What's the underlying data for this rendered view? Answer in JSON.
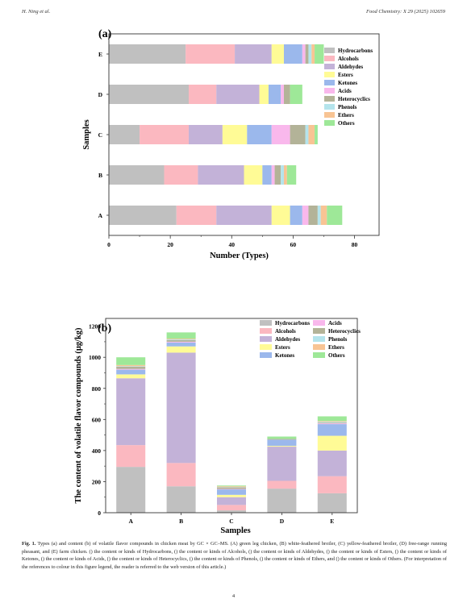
{
  "header": {
    "left": "H. Ning et al.",
    "right": "Food Chemistry: X 29 (2025) 102659"
  },
  "colors": {
    "Hydrocarbons": "#c0c0c0",
    "Alcohols": "#fbb8c0",
    "Aldehydes": "#c3b2d8",
    "Esters": "#fffb96",
    "Ketones": "#9bb8ec",
    "Acids": "#f9b8ec",
    "Heterocyclics": "#b3b398",
    "Phenols": "#b4e4ec",
    "Ethers": "#f8c494",
    "Others": "#9ee898"
  },
  "chart_data": [
    {
      "panel": "(a)",
      "type": "bar",
      "orientation": "horizontal",
      "stacked": true,
      "xlabel": "Number (Types)",
      "ylabel": "Samples",
      "xlim": [
        0,
        88
      ],
      "xticks": [
        0,
        20,
        40,
        60,
        80
      ],
      "categories": [
        "A",
        "B",
        "C",
        "D",
        "E"
      ],
      "legend_position": "right",
      "series": [
        {
          "name": "Hydrocarbons",
          "values": [
            22,
            18,
            10,
            26,
            25
          ]
        },
        {
          "name": "Alcohols",
          "values": [
            13,
            11,
            16,
            9,
            16
          ]
        },
        {
          "name": "Aldehydes",
          "values": [
            18,
            15,
            11,
            14,
            12
          ]
        },
        {
          "name": "Esters",
          "values": [
            6,
            6,
            8,
            3,
            4
          ]
        },
        {
          "name": "Ketones",
          "values": [
            4,
            3,
            8,
            4,
            6
          ]
        },
        {
          "name": "Acids",
          "values": [
            2,
            1,
            6,
            1,
            1
          ]
        },
        {
          "name": "Heterocyclics",
          "values": [
            3,
            2,
            5,
            2,
            1
          ]
        },
        {
          "name": "Phenols",
          "values": [
            1,
            1,
            1,
            0,
            1
          ]
        },
        {
          "name": "Ethers",
          "values": [
            2,
            1,
            2,
            0,
            1
          ]
        },
        {
          "name": "Others",
          "values": [
            5,
            3,
            1,
            4,
            3
          ]
        }
      ]
    },
    {
      "panel": "(b)",
      "type": "bar",
      "orientation": "vertical",
      "stacked": true,
      "xlabel": "Samples",
      "ylabel": "The content of volatile flavor compounds (μg/kg)",
      "ylim": [
        0,
        1250
      ],
      "yticks": [
        0,
        200,
        400,
        600,
        800,
        1000,
        1200
      ],
      "categories": [
        "A",
        "B",
        "C",
        "D",
        "E"
      ],
      "legend_position": "top-right",
      "series": [
        {
          "name": "Hydrocarbons",
          "values": [
            295,
            170,
            15,
            155,
            125
          ]
        },
        {
          "name": "Alcohols",
          "values": [
            140,
            150,
            35,
            50,
            110
          ]
        },
        {
          "name": "Aldehydes",
          "values": [
            430,
            710,
            50,
            220,
            165
          ]
        },
        {
          "name": "Esters",
          "values": [
            25,
            40,
            15,
            5,
            95
          ]
        },
        {
          "name": "Ketones",
          "values": [
            30,
            25,
            35,
            40,
            75
          ]
        },
        {
          "name": "Acids",
          "values": [
            5,
            5,
            3,
            0,
            5
          ]
        },
        {
          "name": "Heterocyclics",
          "values": [
            15,
            10,
            10,
            5,
            5
          ]
        },
        {
          "name": "Phenols",
          "values": [
            3,
            5,
            2,
            0,
            5
          ]
        },
        {
          "name": "Ethers",
          "values": [
            7,
            5,
            5,
            0,
            5
          ]
        },
        {
          "name": "Others",
          "values": [
            50,
            40,
            5,
            15,
            30
          ]
        }
      ]
    }
  ],
  "caption": {
    "label": "Fig. 1.",
    "text": "Types (a) and content (b) of volatile flavor compounds in chicken meat by GC × GC–MS. (A) green leg chicken, (B) white-feathered broiler, (C) yellow-feathered broiler, (D) free-range running pheasant, and (E) farm chicken. () the content or kinds of Hydrocarbons, () the content or kinds of Alcohols, () the content or kinds of Aldehydes, () the content or kinds of Esters, () the content or kinds of Ketones, () the content or kinds of Acids, () the content or kinds of Heterocyclics, () the content or kinds of Phenols, () the content or kinds of Ethers, and () the content or kinds of Others. (For interpretation of the references to colour in this figure legend, the reader is referred to the web version of this article.)"
  },
  "page_number": "4"
}
